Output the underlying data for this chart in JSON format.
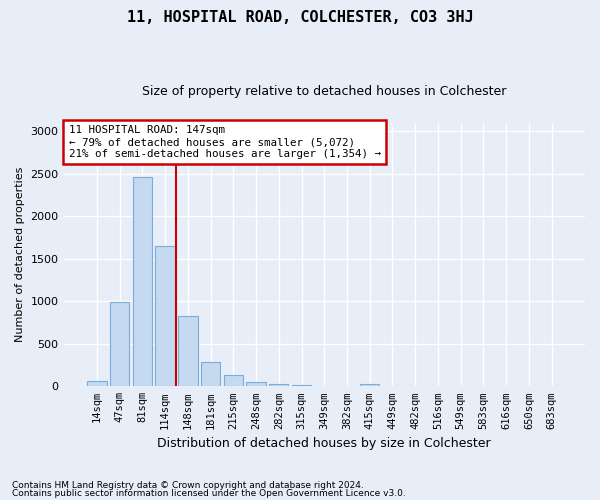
{
  "title": "11, HOSPITAL ROAD, COLCHESTER, CO3 3HJ",
  "subtitle": "Size of property relative to detached houses in Colchester",
  "xlabel": "Distribution of detached houses by size in Colchester",
  "ylabel": "Number of detached properties",
  "bar_labels": [
    "14sqm",
    "47sqm",
    "81sqm",
    "114sqm",
    "148sqm",
    "181sqm",
    "215sqm",
    "248sqm",
    "282sqm",
    "315sqm",
    "349sqm",
    "382sqm",
    "415sqm",
    "449sqm",
    "482sqm",
    "516sqm",
    "549sqm",
    "583sqm",
    "616sqm",
    "650sqm",
    "683sqm"
  ],
  "bar_values": [
    60,
    990,
    2460,
    1650,
    830,
    290,
    130,
    55,
    30,
    20,
    0,
    0,
    30,
    0,
    0,
    0,
    0,
    0,
    0,
    0,
    0
  ],
  "bar_color": "#c5d9f0",
  "bar_edge_color": "#7aadda",
  "vline_color": "#cc0000",
  "annotation_text": "11 HOSPITAL ROAD: 147sqm\n← 79% of detached houses are smaller (5,072)\n21% of semi-detached houses are larger (1,354) →",
  "annotation_box_color": "white",
  "annotation_box_edge_color": "#cc0000",
  "ylim": [
    0,
    3100
  ],
  "yticks": [
    0,
    500,
    1000,
    1500,
    2000,
    2500,
    3000
  ],
  "footer_line1": "Contains HM Land Registry data © Crown copyright and database right 2024.",
  "footer_line2": "Contains public sector information licensed under the Open Government Licence v3.0.",
  "bg_color": "#e8eef8",
  "plot_bg_color": "#e8eef8",
  "grid_color": "white",
  "title_fontsize": 11,
  "subtitle_fontsize": 9,
  "ylabel_fontsize": 8,
  "xlabel_fontsize": 9
}
